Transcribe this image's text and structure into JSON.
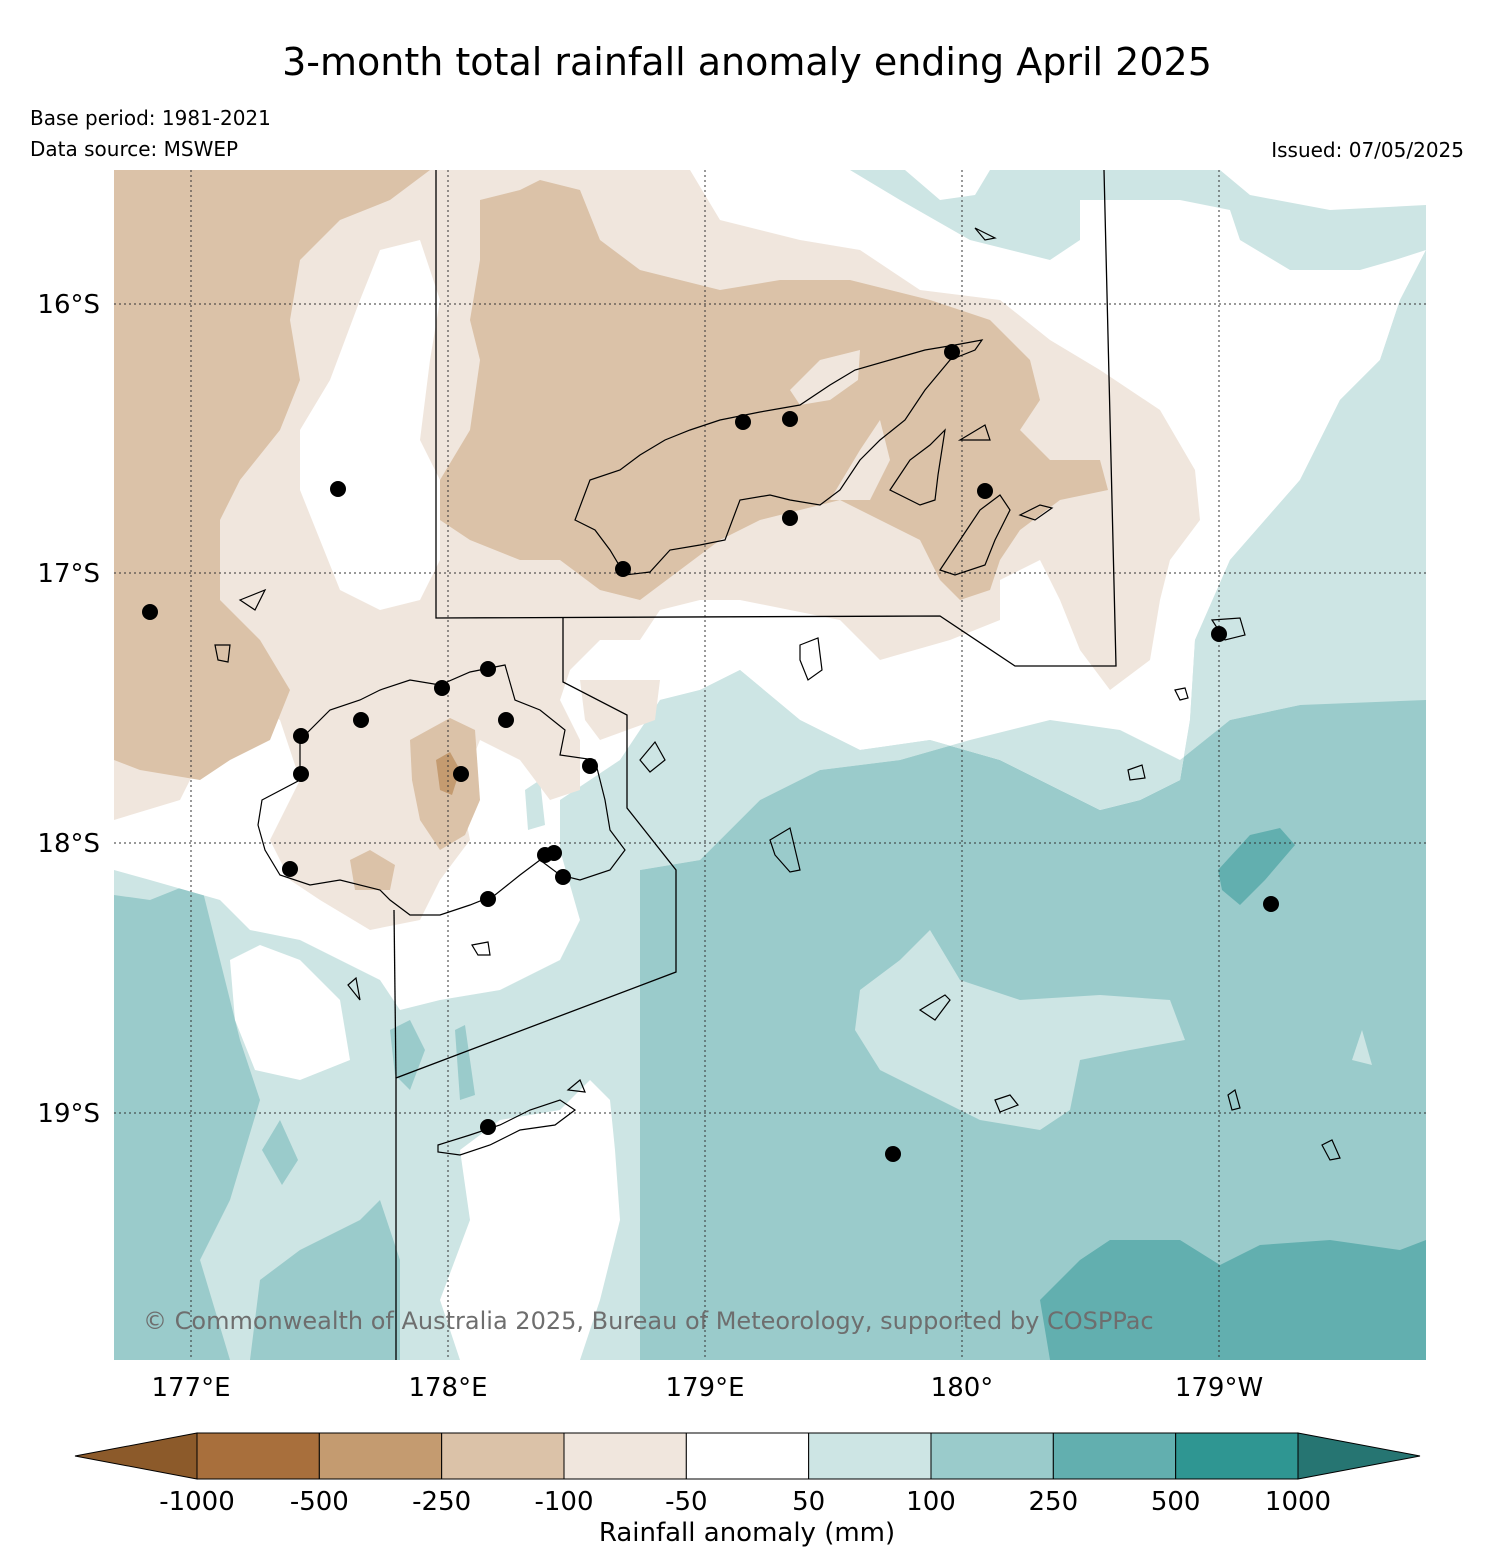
{
  "title": "3-month total rainfall anomaly ending April 2025",
  "base_period": "Base period: 1981-2021",
  "data_source": "Data source: MSWEP",
  "issued": "Issued: 07/05/2025",
  "copyright": "© Commonwealth of Australia 2025, Bureau of Meteorology, supported by COSPPac",
  "lon_labels": [
    "177°E",
    "178°E",
    "179°E",
    "180°",
    "179°W"
  ],
  "lat_labels": [
    "16°S",
    "17°S",
    "18°S",
    "19°S"
  ],
  "colorbar": {
    "label": "Rainfall anomaly (mm)",
    "ticks": [
      "-1000",
      "-500",
      "-250",
      "-100",
      "-50",
      "50",
      "100",
      "250",
      "500",
      "1000"
    ],
    "colors": [
      "#8c5a2a",
      "#a86f3c",
      "#c49b70",
      "#dbc2a8",
      "#f0e6dd",
      "#ffffff",
      "#cde5e4",
      "#9acbcb",
      "#62afaf",
      "#2f9692",
      "#267572"
    ]
  },
  "stations": [
    {
      "name": "station"
    },
    {
      "name": "station"
    }
  ]
}
